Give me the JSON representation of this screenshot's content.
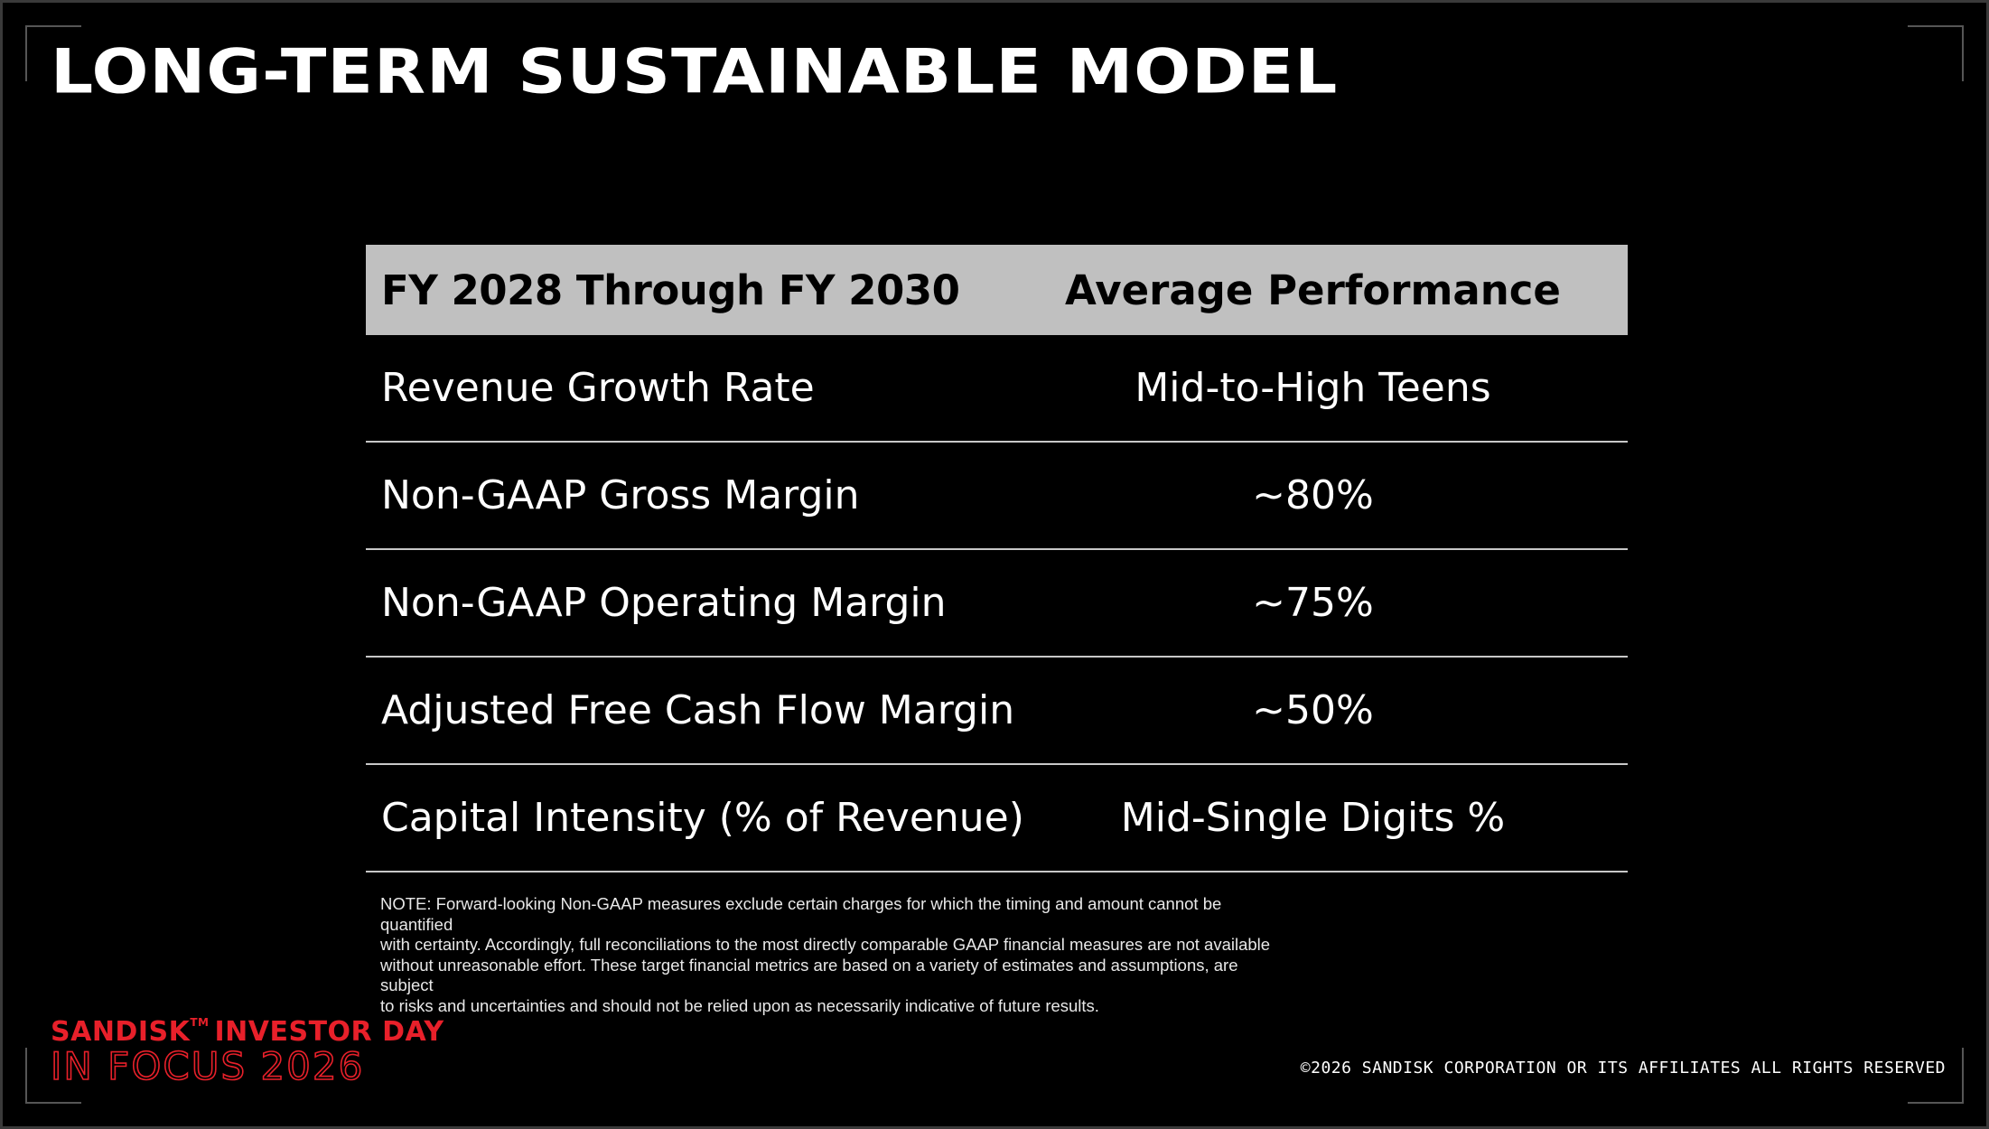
{
  "slide": {
    "title": "LONG-TERM SUSTAINABLE MODEL"
  },
  "table": {
    "headers": [
      "FY 2028 Through FY 2030",
      "Average Performance"
    ],
    "rows": [
      [
        "Revenue Growth Rate",
        "Mid-to-High Teens"
      ],
      [
        "Non-GAAP Gross Margin",
        "~80%"
      ],
      [
        "Non-GAAP Operating Margin",
        "~75%"
      ],
      [
        "Adjusted Free Cash Flow Margin",
        "~50%"
      ],
      [
        "Capital Intensity (% of Revenue)",
        "Mid-Single Digits %"
      ]
    ]
  },
  "note": {
    "lines": [
      "NOTE: Forward-looking Non-GAAP measures exclude certain charges for which the timing and amount cannot be quantified",
      "with certainty. Accordingly, full reconciliations to the most directly comparable GAAP financial measures are not available",
      "without unreasonable effort. These target financial metrics are based on a variety of estimates and assumptions, are subject",
      "to risks and uncertainties and should not be relied upon as necessarily indicative of future results."
    ]
  },
  "logo": {
    "brand": "SANDISK",
    "tm": "TM",
    "event": "INVESTOR DAY",
    "subtitle": "IN FOCUS 2026",
    "color": "#e8202a"
  },
  "footer": {
    "copyright": "©2026 SANDISK CORPORATION OR ITS AFFILIATES ALL RIGHTS RESERVED"
  }
}
